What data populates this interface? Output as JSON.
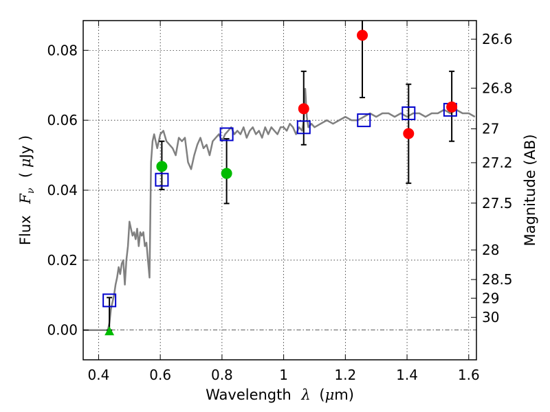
{
  "chart_data": {
    "type": "scatter",
    "title": "",
    "xlabel": {
      "prefix": "Wavelength",
      "symbol": "λ",
      "unit_open": "(",
      "unit_mu": "μ",
      "unit_rest": "m)"
    },
    "ylabel": {
      "prefix": "Flux",
      "symbol": "F",
      "subscript": "ν",
      "unit_open": "(",
      "unit_mu": "μ",
      "unit_rest": "Jy )"
    },
    "y2label": "Magnitude (AB)",
    "xlim": [
      0.35,
      1.625
    ],
    "ylim": [
      -0.0085,
      0.0885
    ],
    "grid": true,
    "x_ticks": [
      {
        "value": 0.4,
        "label": "0.4"
      },
      {
        "value": 0.6,
        "label": "0.6"
      },
      {
        "value": 0.8,
        "label": "0.8"
      },
      {
        "value": 1.0,
        "label": "1"
      },
      {
        "value": 1.2,
        "label": "1.2"
      },
      {
        "value": 1.4,
        "label": "1.4"
      },
      {
        "value": 1.6,
        "label": "1.6"
      }
    ],
    "y_ticks": [
      {
        "value": 0.0,
        "label": "0.00"
      },
      {
        "value": 0.02,
        "label": "0.02"
      },
      {
        "value": 0.04,
        "label": "0.04"
      },
      {
        "value": 0.06,
        "label": "0.06"
      },
      {
        "value": 0.08,
        "label": "0.08"
      }
    ],
    "mag_ticks": [
      "26.6",
      "26.8",
      "27",
      "27.2",
      "27.5",
      "28",
      "28.5",
      "29",
      "30"
    ],
    "zero_line": 0.0,
    "model_color": "#808080",
    "model_x": [
      0.35,
      0.42,
      0.425,
      0.43,
      0.435,
      0.44,
      0.445,
      0.45,
      0.455,
      0.46,
      0.465,
      0.47,
      0.475,
      0.48,
      0.485,
      0.49,
      0.495,
      0.5,
      0.505,
      0.51,
      0.515,
      0.52,
      0.525,
      0.53,
      0.535,
      0.54,
      0.545,
      0.55,
      0.555,
      0.56,
      0.565,
      0.57,
      0.575,
      0.58,
      0.59,
      0.6,
      0.61,
      0.62,
      0.63,
      0.64,
      0.65,
      0.66,
      0.67,
      0.68,
      0.69,
      0.7,
      0.71,
      0.72,
      0.73,
      0.74,
      0.75,
      0.76,
      0.77,
      0.78,
      0.79,
      0.8,
      0.81,
      0.82,
      0.83,
      0.84,
      0.85,
      0.86,
      0.87,
      0.88,
      0.89,
      0.9,
      0.91,
      0.92,
      0.93,
      0.94,
      0.95,
      0.96,
      0.97,
      0.98,
      0.99,
      1.0,
      1.01,
      1.02,
      1.03,
      1.04,
      1.05,
      1.06,
      1.065,
      1.07,
      1.075,
      1.08,
      1.09,
      1.1,
      1.12,
      1.14,
      1.16,
      1.18,
      1.2,
      1.22,
      1.24,
      1.26,
      1.28,
      1.3,
      1.32,
      1.34,
      1.36,
      1.38,
      1.4,
      1.42,
      1.44,
      1.46,
      1.48,
      1.5,
      1.52,
      1.54,
      1.56,
      1.58,
      1.6,
      1.62
    ],
    "model_y": [
      0.0,
      0.0,
      0.0,
      0.0,
      0.002,
      0.006,
      0.008,
      0.01,
      0.013,
      0.015,
      0.018,
      0.016,
      0.019,
      0.02,
      0.013,
      0.02,
      0.024,
      0.031,
      0.029,
      0.027,
      0.028,
      0.026,
      0.029,
      0.024,
      0.028,
      0.027,
      0.028,
      0.024,
      0.025,
      0.02,
      0.015,
      0.048,
      0.054,
      0.056,
      0.052,
      0.056,
      0.057,
      0.054,
      0.053,
      0.052,
      0.05,
      0.055,
      0.054,
      0.055,
      0.048,
      0.046,
      0.05,
      0.053,
      0.055,
      0.052,
      0.053,
      0.05,
      0.054,
      0.055,
      0.056,
      0.054,
      0.056,
      0.057,
      0.058,
      0.056,
      0.057,
      0.056,
      0.058,
      0.055,
      0.057,
      0.058,
      0.056,
      0.057,
      0.055,
      0.058,
      0.056,
      0.058,
      0.057,
      0.056,
      0.058,
      0.058,
      0.057,
      0.059,
      0.058,
      0.056,
      0.058,
      0.057,
      0.06,
      0.069,
      0.061,
      0.058,
      0.059,
      0.058,
      0.059,
      0.06,
      0.059,
      0.06,
      0.061,
      0.06,
      0.06,
      0.061,
      0.062,
      0.061,
      0.062,
      0.062,
      0.061,
      0.062,
      0.061,
      0.062,
      0.062,
      0.061,
      0.062,
      0.062,
      0.063,
      0.062,
      0.063,
      0.062,
      0.062,
      0.061
    ],
    "model_points": {
      "color": "#0000cc",
      "x": [
        0.435,
        0.605,
        0.815,
        1.065,
        1.26,
        1.405,
        1.54
      ],
      "y": [
        0.0085,
        0.043,
        0.056,
        0.058,
        0.06,
        0.062,
        0.063
      ]
    },
    "observed_red": {
      "color": "#ff0000",
      "x": [
        1.065,
        1.255,
        1.405,
        1.545
      ],
      "y": [
        0.0633,
        0.0843,
        0.0562,
        0.0638
      ],
      "err": [
        [
          0.053,
          0.074
        ],
        [
          0.0665,
          0.092
        ],
        [
          0.042,
          0.0703
        ],
        [
          0.054,
          0.074
        ]
      ]
    },
    "observed_green": {
      "color": "#00bb00",
      "x": [
        0.605,
        0.815
      ],
      "y": [
        0.0468,
        0.0448
      ],
      "err": [
        [
          0.0402,
          0.054
        ],
        [
          0.0362,
          0.0547
        ]
      ]
    },
    "upper_limit": {
      "color": "#00bb00",
      "x": [
        0.435
      ],
      "y": [
        -0.0005
      ],
      "err": [
        [
          0.0,
          0.0093
        ]
      ]
    }
  }
}
